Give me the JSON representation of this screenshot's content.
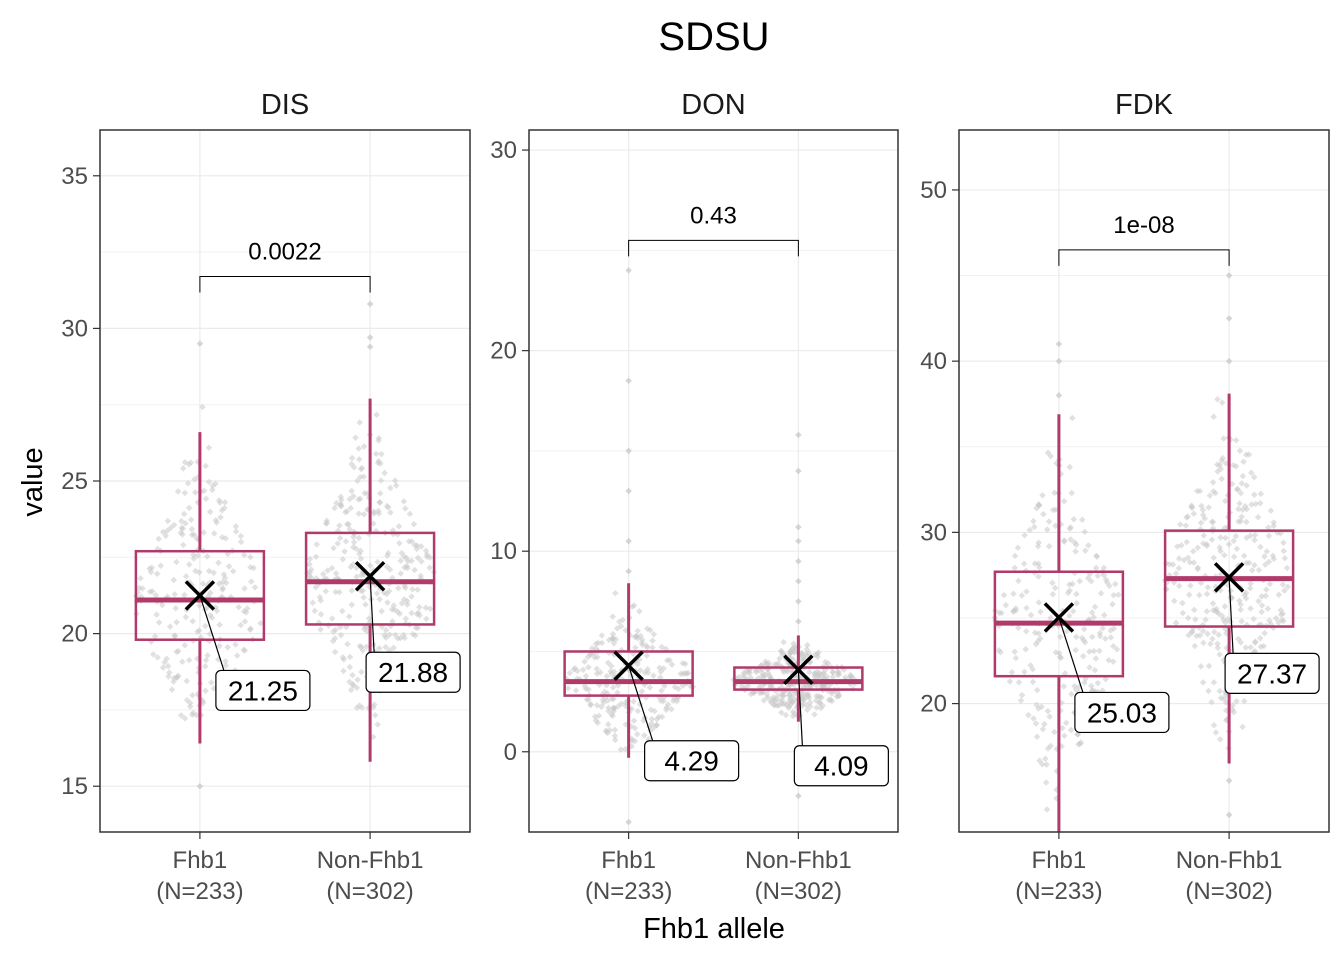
{
  "chart_data": {
    "type": "box",
    "title": "SDSU",
    "xlabel": "Fhb1 allele",
    "ylabel": "value",
    "categories": [
      {
        "name": "Fhb1",
        "n": "(N=233)"
      },
      {
        "name": "Non-Fhb1",
        "n": "(N=302)"
      }
    ],
    "colors": {
      "box": "#b03a6a",
      "points": "#c8c8c8",
      "mean_marker": "#000000"
    },
    "grid": true,
    "panels": [
      {
        "facet": "DIS",
        "ylim": [
          13.5,
          36.5
        ],
        "yticks": [
          15,
          20,
          25,
          30,
          35
        ],
        "p_value": "0.0022",
        "bracket_y": 31.7,
        "groups": [
          {
            "category": "Fhb1",
            "whisker_low": 16.4,
            "q1": 19.8,
            "median": 21.1,
            "q3": 22.7,
            "whisker_high": 26.6,
            "mean": 21.25,
            "mean_label": "21.25",
            "outliers": [
              15.0,
              29.5
            ],
            "spread_range": [
              17.0,
              28.0
            ],
            "n_points": 233
          },
          {
            "category": "Non-Fhb1",
            "whisker_low": 15.8,
            "q1": 20.3,
            "median": 21.7,
            "q3": 23.3,
            "whisker_high": 27.7,
            "mean": 21.88,
            "mean_label": "21.88",
            "outliers": [
              29.4,
              29.7,
              30.8
            ],
            "spread_range": [
              16.5,
              28.0
            ],
            "n_points": 302
          }
        ]
      },
      {
        "facet": "DON",
        "ylim": [
          -4,
          31
        ],
        "yticks": [
          0,
          10,
          20,
          30
        ],
        "p_value": "0.43",
        "bracket_y": 25.5,
        "groups": [
          {
            "category": "Fhb1",
            "whisker_low": -0.3,
            "q1": 2.8,
            "median": 3.5,
            "q3": 5.0,
            "whisker_high": 8.4,
            "mean": 4.29,
            "mean_label": "4.29",
            "outliers": [
              -3.5,
              9.0,
              10.5,
              13.0,
              15.0,
              18.5,
              24.0
            ],
            "spread_range": [
              0.0,
              8.0
            ],
            "n_points": 233
          },
          {
            "category": "Non-Fhb1",
            "whisker_low": 1.5,
            "q1": 3.1,
            "median": 3.5,
            "q3": 4.2,
            "whisker_high": 5.8,
            "mean": 4.09,
            "mean_label": "4.09",
            "outliers": [
              -2.2,
              6.5,
              7.5,
              8.5,
              9.5,
              10.5,
              11.2,
              14.0,
              15.8
            ],
            "spread_range": [
              1.6,
              5.8
            ],
            "n_points": 302
          }
        ]
      },
      {
        "facet": "FDK",
        "ylim": [
          12.5,
          53.5
        ],
        "yticks": [
          20,
          30,
          40,
          50
        ],
        "p_value": "1e-08",
        "bracket_y": 46.5,
        "groups": [
          {
            "category": "Fhb1",
            "whisker_low": 12.5,
            "q1": 21.6,
            "median": 24.7,
            "q3": 27.7,
            "whisker_high": 36.9,
            "mean": 25.03,
            "mean_label": "25.03",
            "outliers": [
              38.0,
              40.0,
              41.0
            ],
            "spread_range": [
              13.5,
              37.0
            ],
            "n_points": 233
          },
          {
            "category": "Non-Fhb1",
            "whisker_low": 16.5,
            "q1": 24.5,
            "median": 27.3,
            "q3": 30.1,
            "whisker_high": 38.1,
            "mean": 27.37,
            "mean_label": "27.37",
            "outliers": [
              13.5,
              15.5,
              40.0,
              42.5,
              45.0
            ],
            "spread_range": [
              17.0,
              38.0
            ],
            "n_points": 302
          }
        ]
      }
    ]
  }
}
